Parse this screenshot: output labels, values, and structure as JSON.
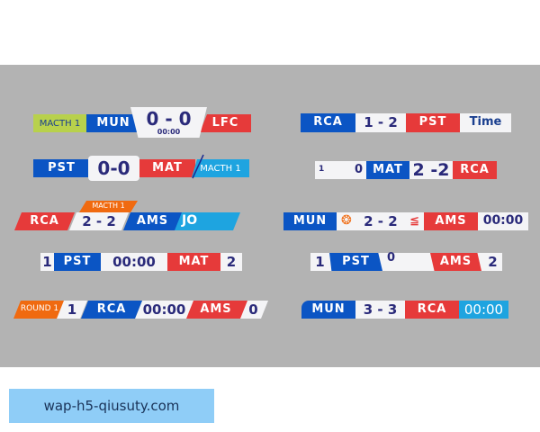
{
  "colors": {
    "blue": "#0b55c4",
    "red": "#e63a3a",
    "white": "#f4f4f6",
    "light_blue": "#1ea4e0",
    "lime": "#b8d14c",
    "orange": "#f06a10",
    "navy_text": "#2a2a7a",
    "background": "#b3b3b3"
  },
  "left": [
    {
      "label": "MACTH 1",
      "home": "MUN",
      "score": "0 - 0",
      "time": "00:00",
      "away": "LFC"
    },
    {
      "home": "PST",
      "score": "0-0",
      "away": "MAT",
      "label": "MACTH 1"
    },
    {
      "home": "RCA",
      "score": "2 - 2",
      "label": "MACTH 1",
      "away": "AMS",
      "extra": "JO"
    },
    {
      "home_score": "1",
      "home": "PST",
      "time": "00:00",
      "away": "MAT",
      "away_score": "2"
    },
    {
      "label": "ROUND 1",
      "home_score": "1",
      "home": "RCA",
      "time": "00:00",
      "away": "AMS",
      "away_score": "0"
    }
  ],
  "right": [
    {
      "home": "RCA",
      "score": "1 - 2",
      "away": "PST",
      "time": "Time"
    },
    {
      "home_score": "1",
      "away_score": "0",
      "home": "MAT",
      "score": "2 -2",
      "away": "RCA"
    },
    {
      "home": "MUN",
      "home_icon": "tiger-crest-icon",
      "score": "2 - 2",
      "away_icon": "wolf-crest-icon",
      "away": "AMS",
      "time": "00:00"
    },
    {
      "home_score": "1",
      "home": "PST",
      "mid_score": "0",
      "away": "AMS",
      "away_score": "2"
    },
    {
      "home": "MUN",
      "score": "3 - 3",
      "away": "RCA",
      "time": "00:00"
    }
  ],
  "banner": "wap-h5-qiusuty.com"
}
